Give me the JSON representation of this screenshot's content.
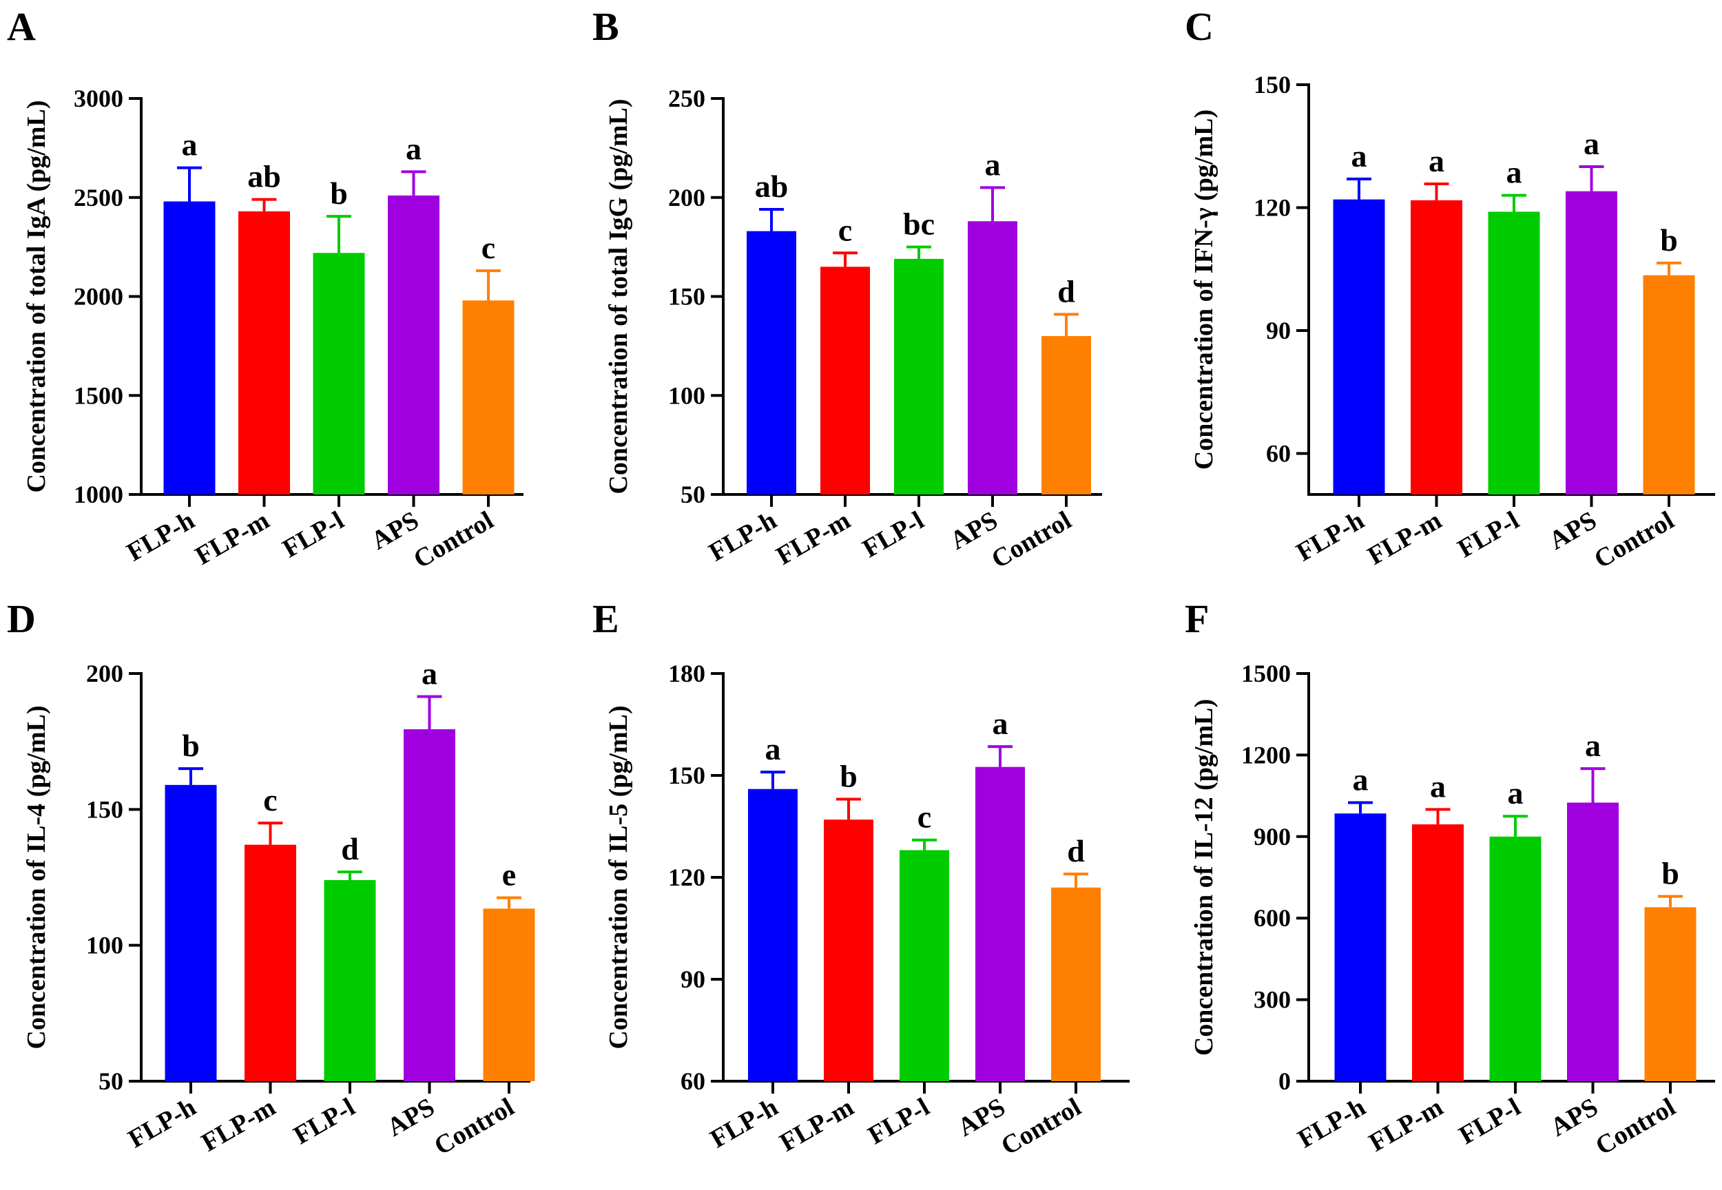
{
  "chart_data": [
    {
      "type": "bar",
      "panel": "A",
      "ylabel": "Concentration of total IgA (pg/mL)",
      "ylim": [
        1000,
        3000
      ],
      "yticks": [
        1000,
        1500,
        2000,
        2500,
        3000
      ],
      "categories": [
        "FLP-h",
        "FLP-m",
        "FLP-l",
        "APS",
        "Control"
      ],
      "values": [
        2480,
        2430,
        2220,
        2510,
        1980
      ],
      "errors": [
        170,
        60,
        185,
        120,
        150
      ],
      "letters": [
        "a",
        "ab",
        "b",
        "a",
        "c"
      ],
      "colors": [
        "#0000ff",
        "#ff0000",
        "#00cc00",
        "#a000e0",
        "#ff8000"
      ]
    },
    {
      "type": "bar",
      "panel": "B",
      "ylabel": "Concentration of total IgG (pg/mL)",
      "ylim": [
        50,
        250
      ],
      "yticks": [
        50,
        100,
        150,
        200,
        250
      ],
      "categories": [
        "FLP-h",
        "FLP-m",
        "FLP-l",
        "APS",
        "Control"
      ],
      "values": [
        183,
        165,
        169,
        188,
        130
      ],
      "errors": [
        11,
        7,
        6,
        17,
        11
      ],
      "letters": [
        "ab",
        "c",
        "bc",
        "a",
        "d"
      ],
      "colors": [
        "#0000ff",
        "#ff0000",
        "#00cc00",
        "#a000e0",
        "#ff8000"
      ]
    },
    {
      "type": "bar",
      "panel": "C",
      "ylabel": "Concentration of IFN-γ (pg/mL)",
      "ylim": [
        50,
        150
      ],
      "yticks": [
        60,
        90,
        120,
        150
      ],
      "categories": [
        "FLP-h",
        "FLP-m",
        "FLP-l",
        "APS",
        "Control"
      ],
      "values": [
        122,
        121.8,
        119,
        124,
        103.5
      ],
      "errors": [
        5,
        4,
        4,
        6,
        3
      ],
      "letters": [
        "a",
        "a",
        "a",
        "a",
        "b"
      ],
      "colors": [
        "#0000ff",
        "#ff0000",
        "#00cc00",
        "#a000e0",
        "#ff8000"
      ]
    },
    {
      "type": "bar",
      "panel": "D",
      "ylabel": "Concentration of IL-4 (pg/mL)",
      "ylim": [
        50,
        200
      ],
      "yticks": [
        50,
        100,
        150,
        200
      ],
      "categories": [
        "FLP-h",
        "FLP-m",
        "FLP-l",
        "APS",
        "Control"
      ],
      "values": [
        159,
        137,
        124,
        179.5,
        113.5
      ],
      "errors": [
        6,
        8,
        3,
        12,
        4
      ],
      "letters": [
        "b",
        "c",
        "d",
        "a",
        "e"
      ],
      "colors": [
        "#0000ff",
        "#ff0000",
        "#00cc00",
        "#a000e0",
        "#ff8000"
      ]
    },
    {
      "type": "bar",
      "panel": "E",
      "ylabel": "Concentration of IL-5 (pg/mL)",
      "ylim": [
        60,
        180
      ],
      "yticks": [
        60,
        90,
        120,
        150,
        180
      ],
      "categories": [
        "FLP-h",
        "FLP-m",
        "FLP-l",
        "APS",
        "Control"
      ],
      "values": [
        146,
        137,
        128,
        152.5,
        117
      ],
      "errors": [
        5,
        6,
        3,
        6,
        4
      ],
      "letters": [
        "a",
        "b",
        "c",
        "a",
        "d"
      ],
      "colors": [
        "#0000ff",
        "#ff0000",
        "#00cc00",
        "#a000e0",
        "#ff8000"
      ]
    },
    {
      "type": "bar",
      "panel": "F",
      "ylabel": "Concentration of IL-12 (pg/mL)",
      "ylim": [
        0,
        1500
      ],
      "yticks": [
        0,
        300,
        600,
        900,
        1200,
        1500
      ],
      "categories": [
        "FLP-h",
        "FLP-m",
        "FLP-l",
        "APS",
        "Control"
      ],
      "values": [
        985,
        945,
        900,
        1025,
        640
      ],
      "errors": [
        40,
        55,
        75,
        125,
        40
      ],
      "letters": [
        "a",
        "a",
        "a",
        "a",
        "b"
      ],
      "colors": [
        "#0000ff",
        "#ff0000",
        "#00cc00",
        "#a000e0",
        "#ff8000"
      ]
    }
  ]
}
